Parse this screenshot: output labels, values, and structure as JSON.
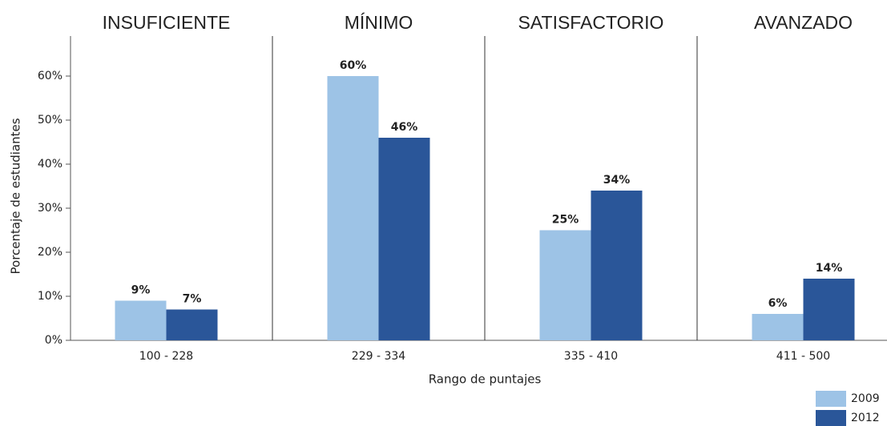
{
  "chart_data": {
    "type": "bar",
    "group_labels": [
      "INSUFICIENTE",
      "MÍNIMO",
      "SATISFACTORIO",
      "AVANZADO"
    ],
    "categories": [
      "100 - 228",
      "229 - 334",
      "335 - 410",
      "411 - 500"
    ],
    "series": [
      {
        "name": "2009",
        "color": "#9dc3e6",
        "values": [
          9,
          60,
          25,
          6
        ],
        "value_labels": [
          "9%",
          "60%",
          "25%",
          "6%"
        ]
      },
      {
        "name": "2012",
        "color": "#2a5699",
        "values": [
          7,
          46,
          34,
          14
        ],
        "value_labels": [
          "7%",
          "46%",
          "34%",
          "14%"
        ]
      }
    ],
    "ylim": [
      0,
      60
    ],
    "yticks": [
      {
        "value": 0,
        "label": "0%"
      },
      {
        "value": 10,
        "label": "10%"
      },
      {
        "value": 20,
        "label": "20%"
      },
      {
        "value": 30,
        "label": "30%"
      },
      {
        "value": 40,
        "label": "40%"
      },
      {
        "value": 50,
        "label": "50%"
      },
      {
        "value": 60,
        "label": "60%"
      }
    ],
    "y_axis_label": "Porcentaje de estudiantes",
    "x_axis_label": "Rango de puntajes",
    "legend": "bottom-right"
  }
}
